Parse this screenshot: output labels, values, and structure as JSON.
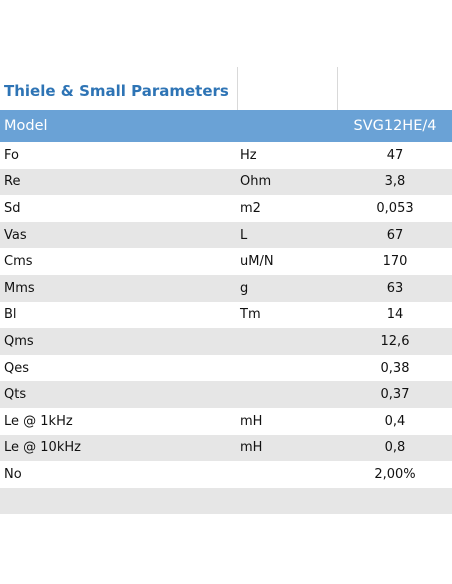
{
  "title": "Thiele & Small Parameters",
  "header": {
    "col1": "Model",
    "col3": "SVG12HE/4"
  },
  "rows": [
    {
      "param": "Fo",
      "unit": "Hz",
      "value": "47"
    },
    {
      "param": "Re",
      "unit": "Ohm",
      "value": "3,8"
    },
    {
      "param": "Sd",
      "unit": "m2",
      "value": "0,053"
    },
    {
      "param": "Vas",
      "unit": "L",
      "value": "67"
    },
    {
      "param": "Cms",
      "unit": "uM/N",
      "value": "170"
    },
    {
      "param": "Mms",
      "unit": "g",
      "value": "63"
    },
    {
      "param": "Bl",
      "unit": "Tm",
      "value": "14"
    },
    {
      "param": "Qms",
      "unit": "",
      "value": "12,6"
    },
    {
      "param": "Qes",
      "unit": "",
      "value": "0,38"
    },
    {
      "param": "Qts",
      "unit": "",
      "value": "0,37"
    },
    {
      "param": "Le @ 1kHz",
      "unit": "mH",
      "value": "0,4"
    },
    {
      "param": "Le @ 10kHz",
      "unit": "mH",
      "value": "0,8"
    },
    {
      "param": "No",
      "unit": "",
      "value": "2,00%"
    }
  ],
  "colors": {
    "header_bg": "#6aa2d6",
    "title_text": "#2e74b5",
    "shade_row": "#e6e6e6"
  }
}
